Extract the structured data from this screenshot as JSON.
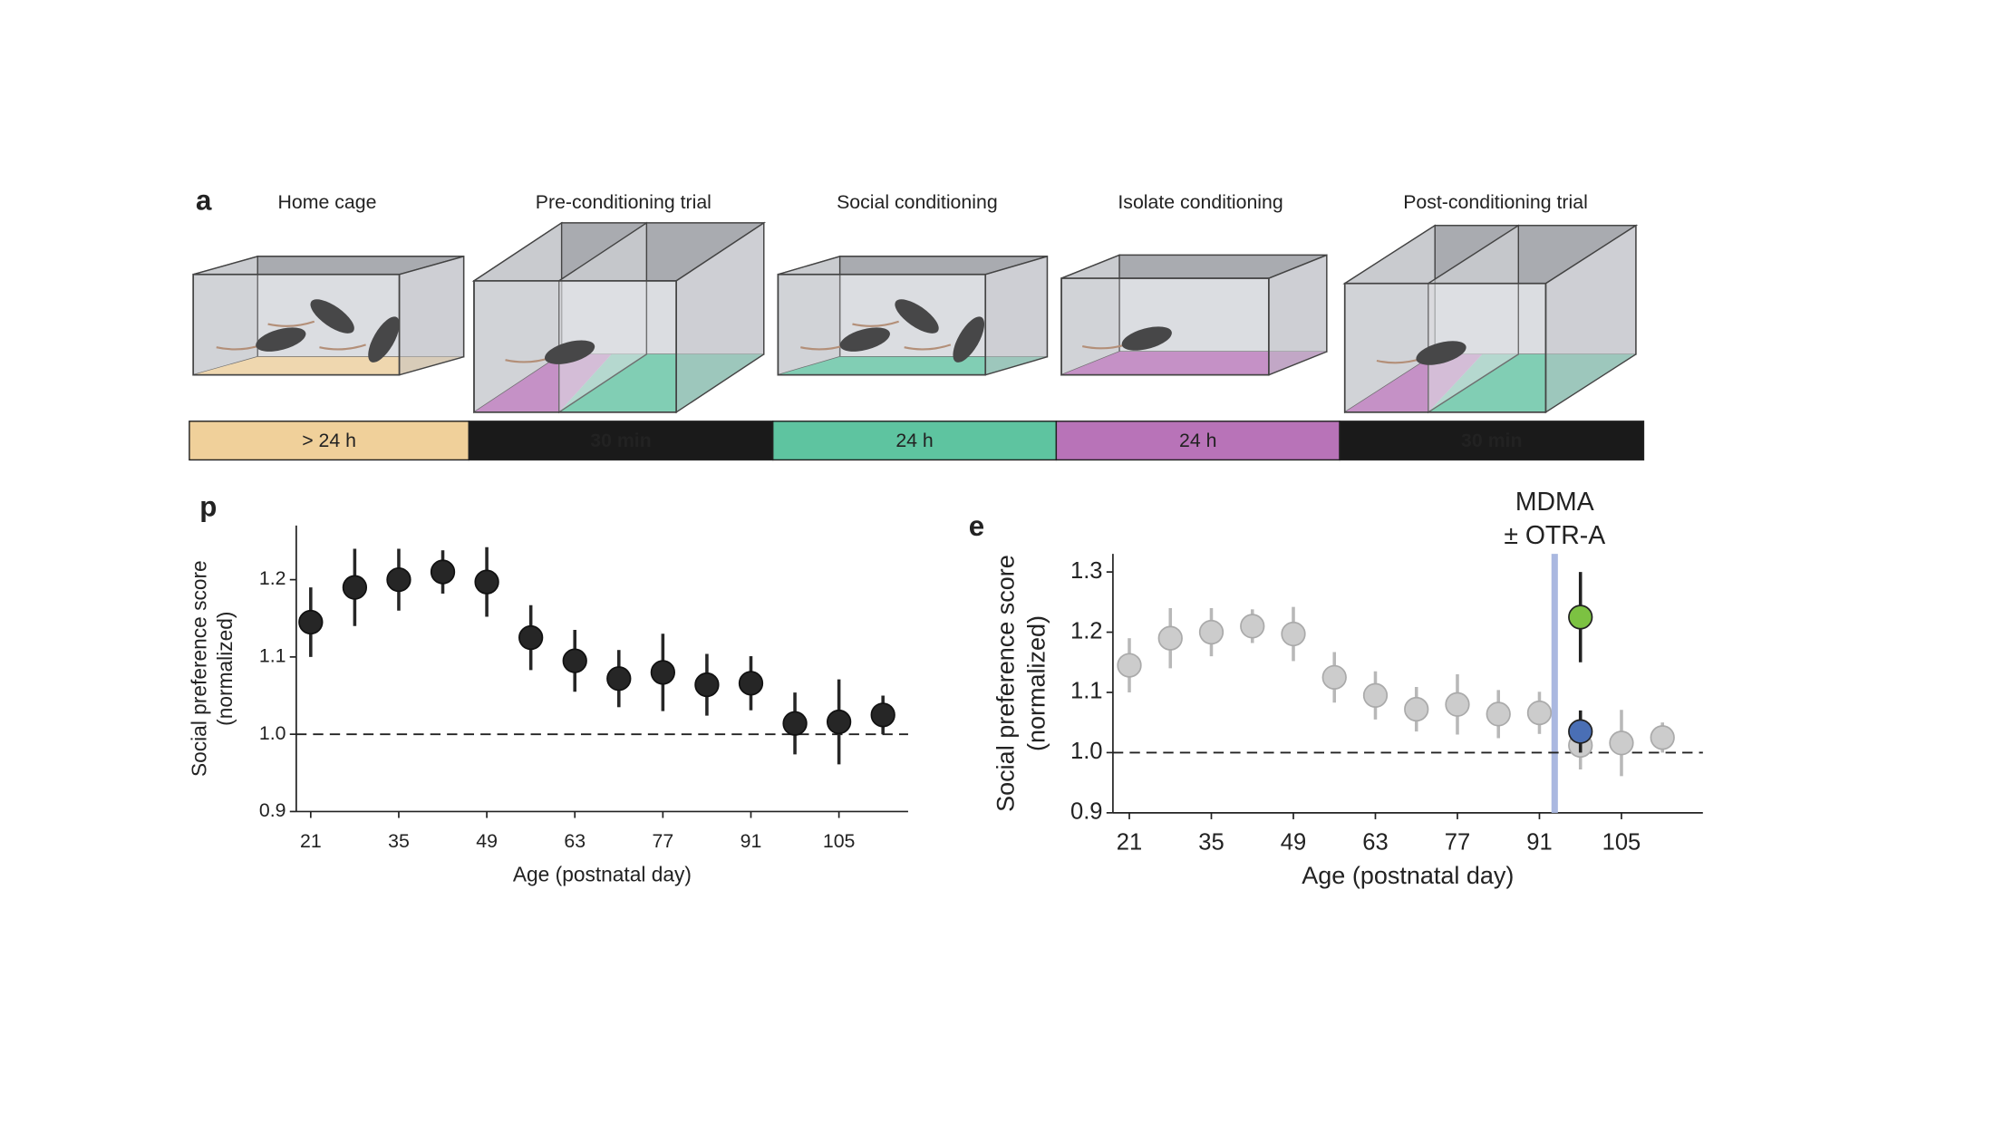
{
  "diagram": {
    "label": "a",
    "stages": [
      {
        "title": "Home cage",
        "duration": "> 24 h"
      },
      {
        "title": "Pre-conditioning trial",
        "duration": "30 min"
      },
      {
        "title": "Social conditioning",
        "duration": "24 h"
      },
      {
        "title": "Isolate conditioning",
        "duration": "24 h"
      },
      {
        "title": "Post-conditioning trial",
        "duration": "30 min"
      }
    ]
  },
  "chart_data": [
    {
      "type": "scatter",
      "panel_label": "p",
      "y_label": [
        "Social preference score",
        "(normalized)"
      ],
      "x_label": "Age (postnatal day)",
      "x": [
        21,
        28,
        35,
        42,
        49,
        56,
        63,
        70,
        77,
        84,
        91,
        98,
        105,
        112
      ],
      "series": [
        {
          "color": "#262626",
          "edge": "#111111",
          "errors_color": "#262626",
          "values": [
            1.145,
            1.19,
            1.2,
            1.21,
            1.197,
            1.125,
            1.095,
            1.072,
            1.08,
            1.064,
            1.066,
            1.014,
            1.016,
            1.025
          ],
          "errors": [
            0.045,
            0.05,
            0.04,
            0.028,
            0.045,
            0.042,
            0.04,
            0.037,
            0.05,
            0.04,
            0.035,
            0.04,
            0.055,
            0.025
          ]
        }
      ],
      "xlim": [
        18.7,
        116
      ],
      "xticks": [
        21,
        35,
        49,
        63,
        77,
        91,
        105
      ],
      "ylim": [
        0.9,
        1.27
      ],
      "yticks": [
        0.9,
        {
          "value": 1,
          "label": "1.0"
        },
        1.1,
        1.2
      ],
      "reference_line": 1
    },
    {
      "type": "scatter",
      "panel_label": "e",
      "y_label": [
        "Social preference score",
        "(normalized)"
      ],
      "x_label": "Age (postnatal day)",
      "annotation": [
        "MDMA",
        "± OTR-A"
      ],
      "vline": 93.6,
      "vline_color": "#aab8e0",
      "x": [
        21,
        28,
        35,
        42,
        49,
        56,
        63,
        70,
        77,
        84,
        91,
        98,
        105,
        112
      ],
      "series": [
        {
          "color": "#cccccc",
          "edge": "#aaaaaa",
          "errors_color": "#b8b8b8",
          "values": [
            1.145,
            1.19,
            1.2,
            1.21,
            1.197,
            1.125,
            1.095,
            1.072,
            1.08,
            1.064,
            1.066,
            1.012,
            1.016,
            1.025
          ],
          "errors": [
            0.045,
            0.05,
            0.04,
            0.028,
            0.045,
            0.042,
            0.04,
            0.037,
            0.05,
            0.04,
            0.035,
            0.04,
            0.055,
            0.025
          ]
        },
        {
          "x": [
            98
          ],
          "color": "#7cc242",
          "edge": "#222222",
          "errors_color": "#222222",
          "values": [
            1.225
          ],
          "errors": [
            0.075
          ]
        },
        {
          "x": [
            98
          ],
          "color": "#4a6fb5",
          "edge": "#222222",
          "errors_color": "#222222",
          "values": [
            1.035
          ],
          "errors": [
            0.035
          ]
        }
      ],
      "xlim": [
        18.2,
        118.9
      ],
      "xticks": [
        21,
        35,
        49,
        63,
        77,
        91,
        105
      ],
      "ylim": [
        0.9,
        1.33
      ],
      "yticks": [
        0.9,
        {
          "value": 1,
          "label": "1.0"
        },
        1.1,
        1.2,
        1.3
      ],
      "reference_line": 1
    }
  ]
}
